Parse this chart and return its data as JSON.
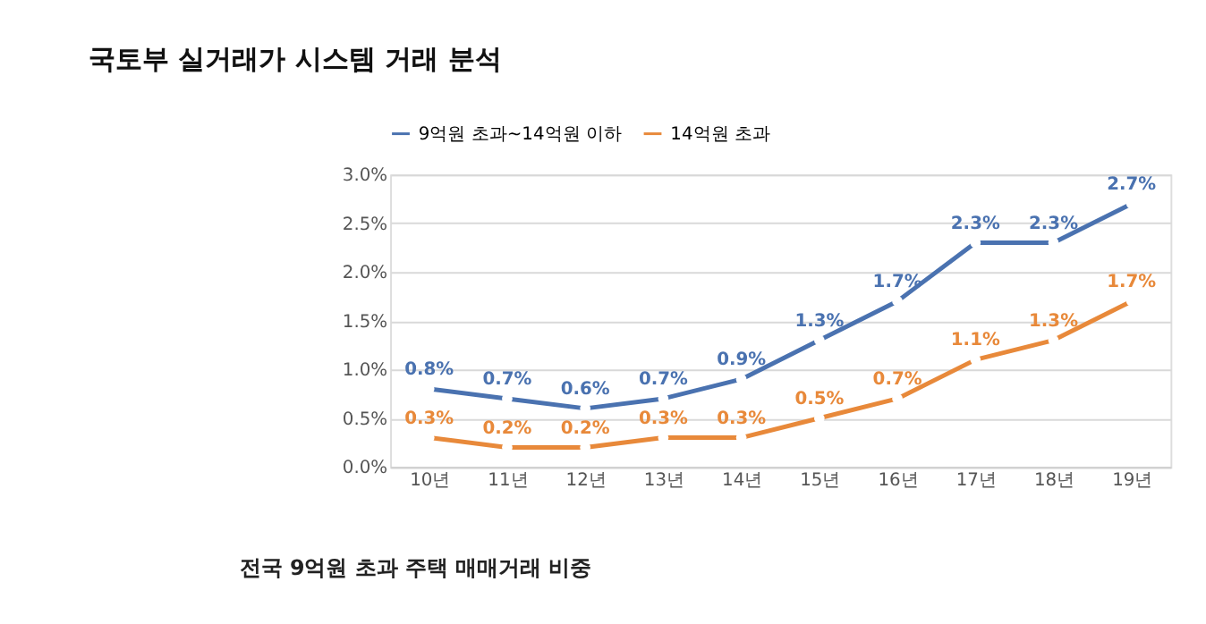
{
  "chart_data": {
    "type": "line",
    "title": "국토부 실거래가 시스템 거래 분석",
    "categories": [
      "10년",
      "11년",
      "12년",
      "13년",
      "14년",
      "15년",
      "16년",
      "17년",
      "18년",
      "19년"
    ],
    "series": [
      {
        "name": "9억원 초과~14억원 이하",
        "color": "#4a72b0",
        "values": [
          0.8,
          0.7,
          0.6,
          0.7,
          0.9,
          1.3,
          1.7,
          2.3,
          2.3,
          2.7
        ],
        "value_labels": [
          "0.8%",
          "0.7%",
          "0.6%",
          "0.7%",
          "0.9%",
          "1.3%",
          "1.7%",
          "2.3%",
          "2.3%",
          "2.7%"
        ]
      },
      {
        "name": "14억원 초과",
        "color": "#e8893a",
        "values": [
          0.3,
          0.2,
          0.2,
          0.3,
          0.3,
          0.5,
          0.7,
          1.1,
          1.3,
          1.7
        ],
        "value_labels": [
          "0.3%",
          "0.2%",
          "0.2%",
          "0.3%",
          "0.3%",
          "0.5%",
          "0.7%",
          "1.1%",
          "1.3%",
          "1.7%"
        ]
      }
    ],
    "ylim": [
      0,
      3.0
    ],
    "yticks": [
      {
        "value": 0,
        "label": "0.0%"
      },
      {
        "value": 0.5,
        "label": "0.5%"
      },
      {
        "value": 1.0,
        "label": "1.0%"
      },
      {
        "value": 1.5,
        "label": "1.5%"
      },
      {
        "value": 2.0,
        "label": "2.0%"
      },
      {
        "value": 2.5,
        "label": "2.5%"
      },
      {
        "value": 3.0,
        "label": "3.0%"
      }
    ],
    "grid": "y",
    "legend": "top",
    "marker": "circle",
    "line_style": "solid",
    "annotations": [
      "전국 9억원 초과 주택 매매거래 비중"
    ]
  }
}
